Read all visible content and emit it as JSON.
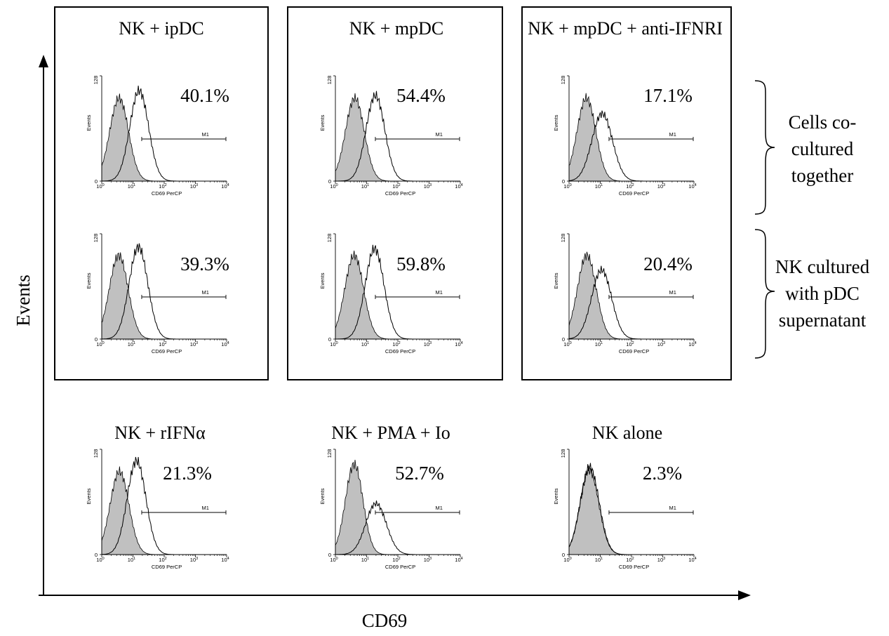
{
  "figure": {
    "x_axis_label": "CD69",
    "y_axis_label": "Events",
    "brackets": [
      {
        "lines": [
          "Cells co-",
          "cultured",
          "together"
        ]
      },
      {
        "lines": [
          "NK cultured",
          "with pDC",
          "supernatant"
        ]
      }
    ]
  },
  "plot_text": {
    "y_label": "Events",
    "x_label": "CD69 PerCP",
    "y_top_tick": "128",
    "y_zero_tick": "0",
    "gate_label": "M1",
    "x_tick_base": "10",
    "x_tick_exps": [
      "0",
      "1",
      "2",
      "3",
      "4"
    ]
  },
  "colors": {
    "isotype_fill": "#c0c0c0",
    "line": "#000000",
    "background": "#ffffff"
  },
  "chart_data": [
    {
      "type": "area",
      "panel": "NK + ipDC, row 1",
      "title": "NK + ipDC",
      "annotation": "40.1%",
      "gate": "M1",
      "xlabel": "CD69 PerCP",
      "ylabel": "Events",
      "x_scale": "log",
      "xlim": [
        1,
        10000
      ],
      "ylim": [
        0,
        128
      ],
      "series": [
        {
          "name": "",
          "role": "control",
          "mode": 3.6,
          "height": 101,
          "width": 0.3
        },
        {
          "name": "",
          "role": "stained",
          "mode": 15.8,
          "height": 110,
          "width": 0.3
        }
      ]
    },
    {
      "type": "area",
      "panel": "NK + mpDC, row 1",
      "title": "NK + mpDC",
      "annotation": "54.4%",
      "gate": "M1",
      "xlabel": "CD69 PerCP",
      "ylabel": "Events",
      "x_scale": "log",
      "xlim": [
        1,
        10000
      ],
      "ylim": [
        0,
        128
      ],
      "series": [
        {
          "name": "",
          "role": "control",
          "mode": 4.2,
          "height": 101,
          "width": 0.3
        },
        {
          "name": "",
          "role": "stained",
          "mode": 19.1,
          "height": 104,
          "width": 0.3
        }
      ]
    },
    {
      "type": "area",
      "panel": "NK + mpDC + anti-IFNRI, row 1",
      "title": "NK + mpDC + anti-IFNRI",
      "annotation": "17.1%",
      "gate": "M1",
      "xlabel": "CD69 PerCP",
      "ylabel": "Events",
      "x_scale": "log",
      "xlim": [
        1,
        10000
      ],
      "ylim": [
        0,
        128
      ],
      "series": [
        {
          "name": "",
          "role": "control",
          "mode": 3.6,
          "height": 101,
          "width": 0.3
        },
        {
          "name": "",
          "role": "stained",
          "mode": 11.5,
          "height": 82,
          "width": 0.33
        }
      ]
    },
    {
      "type": "area",
      "panel": "NK + ipDC, row 2",
      "annotation": "39.3%",
      "gate": "M1",
      "xlabel": "CD69 PerCP",
      "ylabel": "Events",
      "x_scale": "log",
      "xlim": [
        1,
        10000
      ],
      "ylim": [
        0,
        128
      ],
      "series": [
        {
          "name": "",
          "role": "control",
          "mode": 3.5,
          "height": 102,
          "width": 0.3
        },
        {
          "name": "",
          "role": "stained",
          "mode": 15,
          "height": 112,
          "width": 0.3
        }
      ]
    },
    {
      "type": "area",
      "panel": "NK + mpDC, row 2",
      "annotation": "59.8%",
      "gate": "M1",
      "xlabel": "CD69 PerCP",
      "ylabel": "Events",
      "x_scale": "log",
      "xlim": [
        1,
        10000
      ],
      "ylim": [
        0,
        128
      ],
      "series": [
        {
          "name": "",
          "role": "control",
          "mode": 4,
          "height": 102,
          "width": 0.3
        },
        {
          "name": "",
          "role": "stained",
          "mode": 18,
          "height": 110,
          "width": 0.3
        }
      ]
    },
    {
      "type": "area",
      "panel": "NK + mpDC + anti-IFNRI, row 2",
      "annotation": "20.4%",
      "gate": "M1",
      "xlabel": "CD69 PerCP",
      "ylabel": "Events",
      "x_scale": "log",
      "xlim": [
        1,
        10000
      ],
      "ylim": [
        0,
        128
      ],
      "series": [
        {
          "name": "",
          "role": "control",
          "mode": 3.7,
          "height": 102,
          "width": 0.3
        },
        {
          "name": "",
          "role": "stained",
          "mode": 11,
          "height": 84,
          "width": 0.32
        }
      ]
    },
    {
      "type": "area",
      "panel": "NK + rIFNα",
      "title": "NK + rIFNα",
      "annotation": "21.3%",
      "gate": "M1",
      "xlabel": "CD69 PerCP",
      "ylabel": "Events",
      "x_scale": "log",
      "xlim": [
        1,
        10000
      ],
      "ylim": [
        0,
        128
      ],
      "series": [
        {
          "name": "",
          "role": "control",
          "mode": 3.7,
          "height": 101,
          "width": 0.3
        },
        {
          "name": "",
          "role": "stained",
          "mode": 13,
          "height": 114,
          "width": 0.3
        }
      ]
    },
    {
      "type": "area",
      "panel": "NK + PMA + Io",
      "title": "NK + PMA + Io",
      "annotation": "52.7%",
      "gate": "M1",
      "xlabel": "CD69 PerCP",
      "ylabel": "Events",
      "x_scale": "log",
      "xlim": [
        1,
        10000
      ],
      "ylim": [
        0,
        128
      ],
      "series": [
        {
          "name": "",
          "role": "control",
          "mode": 4,
          "height": 110,
          "width": 0.28
        },
        {
          "name": "",
          "role": "stained",
          "mode": 20,
          "height": 62,
          "width": 0.33
        }
      ]
    },
    {
      "type": "area",
      "panel": "NK alone",
      "title": "NK alone",
      "annotation": "2.3%",
      "gate": "M1",
      "xlabel": "CD69 PerCP",
      "ylabel": "Events",
      "x_scale": "log",
      "xlim": [
        1,
        10000
      ],
      "ylim": [
        0,
        128
      ],
      "series": [
        {
          "name": "",
          "role": "control",
          "mode": 4.5,
          "height": 103,
          "width": 0.3
        },
        {
          "name": "",
          "role": "stained",
          "mode": 4.6,
          "height": 106,
          "width": 0.3
        }
      ]
    }
  ]
}
